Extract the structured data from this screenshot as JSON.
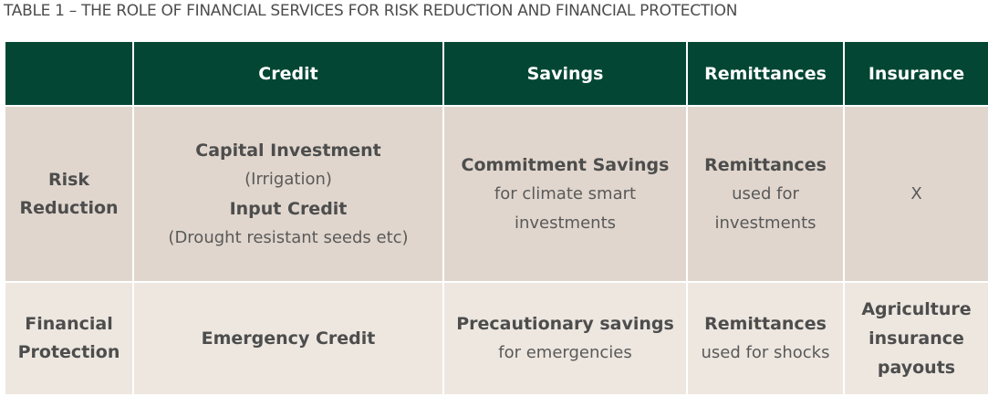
{
  "caption": "TABLE 1 – THE ROLE OF FINANCIAL SERVICES FOR RISK REDUCTION AND FINANCIAL PROTECTION",
  "headers": [
    "",
    "Credit",
    "Savings",
    "Remittances",
    "Insurance"
  ],
  "rows": {
    "risk": {
      "label_line1": "Risk",
      "label_line2": "Reduction",
      "credit": {
        "title1": "Capital Investment",
        "note1": "(Irrigation)",
        "title2": "Input Credit",
        "note2": "(Drought resistant seeds etc)"
      },
      "savings": {
        "title": "Commitment Savings",
        "note1": "for climate smart",
        "note2": "investments"
      },
      "remittances": {
        "title": "Remittances",
        "note1": "used for",
        "note2": "investments"
      },
      "insurance": "X"
    },
    "protection": {
      "label_line1": "Financial",
      "label_line2": "Protection",
      "credit": "Emergency Credit",
      "savings": {
        "title": "Precautionary savings",
        "note": "for emergencies"
      },
      "remittances": {
        "title": "Remittances",
        "note": "used for shocks"
      },
      "insurance": {
        "line1": "Agriculture",
        "line2": "insurance",
        "line3": "payouts"
      }
    }
  },
  "colors": {
    "header_bg": "#024633",
    "risk_row_bg": "#e0d6cd",
    "protection_row_bg": "#ede7e0"
  }
}
